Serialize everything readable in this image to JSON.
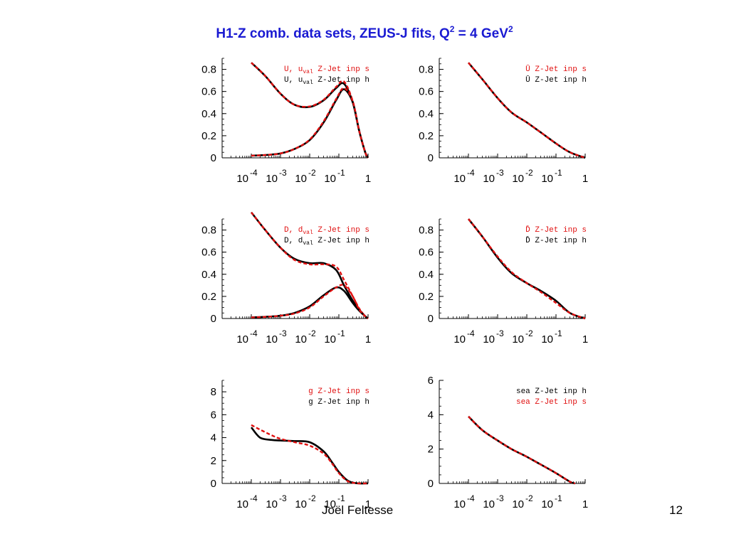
{
  "slide": {
    "title_main": "H1-Z comb. data sets, ZEUS-J fits, Q",
    "title_sup1": "2",
    "title_mid": " = 4 GeV",
    "title_sup2": "2",
    "footer_author": "Joël Feltesse",
    "footer_page": "12"
  },
  "colors": {
    "title": "#1a1ad2",
    "hera_series": "#e01010",
    "zeus_series": "#000000"
  },
  "chart_data": [
    {
      "type": "line",
      "x_scale": "log",
      "xlim": [
        1e-05,
        1
      ],
      "xticks": [
        {
          "base": "10",
          "exp": "-4"
        },
        {
          "base": "10",
          "exp": "-3"
        },
        {
          "base": "10",
          "exp": "-2"
        },
        {
          "base": "10",
          "exp": "-1"
        },
        {
          "base": "1",
          "exp": ""
        }
      ],
      "ylim": [
        0,
        0.9
      ],
      "yticks": [
        "0",
        "0.2",
        "0.4",
        "0.6",
        "0.8"
      ],
      "legend": [
        {
          "main": "U, u",
          "sub": "val",
          "suffix": "  Z-Jet inp s",
          "color": "#e01010"
        },
        {
          "main": "U, u",
          "sub": "val",
          "suffix": "  Z-Jet inp h",
          "color": "#000000"
        }
      ],
      "series": [
        {
          "style": "solid",
          "color": "#000000",
          "x": [
            0.0001,
            0.0003,
            0.001,
            0.003,
            0.01,
            0.03,
            0.08,
            0.15,
            0.3,
            0.5,
            0.8,
            1.0
          ],
          "y": [
            0.86,
            0.74,
            0.58,
            0.48,
            0.46,
            0.52,
            0.63,
            0.67,
            0.5,
            0.24,
            0.05,
            0.0
          ]
        },
        {
          "style": "dashed",
          "color": "#e01010",
          "x": [
            0.0001,
            0.0003,
            0.001,
            0.003,
            0.01,
            0.03,
            0.08,
            0.15,
            0.3,
            0.5,
            0.8,
            1.0
          ],
          "y": [
            0.86,
            0.74,
            0.58,
            0.48,
            0.465,
            0.525,
            0.64,
            0.69,
            0.51,
            0.24,
            0.05,
            0.0
          ]
        },
        {
          "style": "solid",
          "color": "#000000",
          "x": [
            0.0001,
            0.0003,
            0.001,
            0.003,
            0.01,
            0.03,
            0.08,
            0.15,
            0.3,
            0.5,
            0.8,
            1.0
          ],
          "y": [
            0.02,
            0.025,
            0.04,
            0.08,
            0.16,
            0.32,
            0.52,
            0.62,
            0.5,
            0.24,
            0.05,
            0.0
          ]
        },
        {
          "style": "dashed",
          "color": "#e01010",
          "x": [
            0.0001,
            0.0003,
            0.001,
            0.003,
            0.01,
            0.03,
            0.08,
            0.15,
            0.3,
            0.5,
            0.8,
            1.0
          ],
          "y": [
            0.02,
            0.025,
            0.04,
            0.08,
            0.165,
            0.33,
            0.53,
            0.63,
            0.51,
            0.24,
            0.05,
            0.0
          ]
        }
      ]
    },
    {
      "type": "line",
      "x_scale": "log",
      "xlim": [
        1e-05,
        1
      ],
      "xticks": [
        {
          "base": "10",
          "exp": "-4"
        },
        {
          "base": "10",
          "exp": "-3"
        },
        {
          "base": "10",
          "exp": "-2"
        },
        {
          "base": "10",
          "exp": "-1"
        },
        {
          "base": "1",
          "exp": ""
        }
      ],
      "ylim": [
        0,
        0.9
      ],
      "yticks": [
        "0",
        "0.2",
        "0.4",
        "0.6",
        "0.8"
      ],
      "legend": [
        {
          "main": "Ū",
          "sub": "",
          "suffix": "  Z-Jet inp s",
          "color": "#e01010"
        },
        {
          "main": "Ū",
          "sub": "",
          "suffix": "  Z-Jet inp h",
          "color": "#000000"
        }
      ],
      "series": [
        {
          "style": "solid",
          "color": "#000000",
          "x": [
            0.0001,
            0.0003,
            0.001,
            0.003,
            0.01,
            0.03,
            0.1,
            0.3,
            1.0
          ],
          "y": [
            0.86,
            0.71,
            0.54,
            0.41,
            0.32,
            0.23,
            0.13,
            0.05,
            0.0
          ]
        },
        {
          "style": "dashed",
          "color": "#e01010",
          "x": [
            0.0001,
            0.0003,
            0.001,
            0.003,
            0.01,
            0.03,
            0.1,
            0.3,
            1.0
          ],
          "y": [
            0.86,
            0.71,
            0.54,
            0.41,
            0.32,
            0.23,
            0.13,
            0.05,
            0.0
          ]
        }
      ]
    },
    {
      "type": "line",
      "x_scale": "log",
      "xlim": [
        1e-05,
        1
      ],
      "xticks": [
        {
          "base": "10",
          "exp": "-4"
        },
        {
          "base": "10",
          "exp": "-3"
        },
        {
          "base": "10",
          "exp": "-2"
        },
        {
          "base": "10",
          "exp": "-1"
        },
        {
          "base": "1",
          "exp": ""
        }
      ],
      "ylim": [
        0,
        0.9
      ],
      "yticks": [
        "0",
        "0.2",
        "0.4",
        "0.6",
        "0.8"
      ],
      "legend": [
        {
          "main": "D, d",
          "sub": "val",
          "suffix": "  Z-Jet inp s",
          "color": "#e01010"
        },
        {
          "main": "D, d",
          "sub": "val",
          "suffix": "  Z-Jet inp h",
          "color": "#000000"
        }
      ],
      "series": [
        {
          "style": "solid",
          "color": "#000000",
          "x": [
            0.0001,
            0.0003,
            0.001,
            0.003,
            0.01,
            0.03,
            0.08,
            0.15,
            0.3,
            0.5,
            0.8,
            1.0
          ],
          "y": [
            0.96,
            0.8,
            0.64,
            0.54,
            0.5,
            0.5,
            0.44,
            0.3,
            0.16,
            0.08,
            0.02,
            0.0
          ]
        },
        {
          "style": "dashed",
          "color": "#e01010",
          "x": [
            0.0001,
            0.0003,
            0.001,
            0.003,
            0.01,
            0.03,
            0.08,
            0.15,
            0.3,
            0.5,
            0.8,
            1.0
          ],
          "y": [
            0.96,
            0.8,
            0.64,
            0.53,
            0.49,
            0.49,
            0.47,
            0.35,
            0.2,
            0.09,
            0.02,
            0.0
          ]
        },
        {
          "style": "solid",
          "color": "#000000",
          "x": [
            0.0001,
            0.0003,
            0.001,
            0.003,
            0.01,
            0.03,
            0.08,
            0.15,
            0.3,
            0.5,
            0.8,
            1.0
          ],
          "y": [
            0.01,
            0.015,
            0.025,
            0.05,
            0.11,
            0.21,
            0.28,
            0.25,
            0.14,
            0.07,
            0.02,
            0.0
          ]
        },
        {
          "style": "dashed",
          "color": "#e01010",
          "x": [
            0.0001,
            0.0003,
            0.001,
            0.003,
            0.01,
            0.03,
            0.08,
            0.15,
            0.3,
            0.5,
            0.8,
            1.0
          ],
          "y": [
            0.01,
            0.015,
            0.025,
            0.045,
            0.1,
            0.2,
            0.28,
            0.3,
            0.2,
            0.08,
            0.02,
            0.0
          ]
        }
      ]
    },
    {
      "type": "line",
      "x_scale": "log",
      "xlim": [
        1e-05,
        1
      ],
      "xticks": [
        {
          "base": "10",
          "exp": "-4"
        },
        {
          "base": "10",
          "exp": "-3"
        },
        {
          "base": "10",
          "exp": "-2"
        },
        {
          "base": "10",
          "exp": "-1"
        },
        {
          "base": "1",
          "exp": ""
        }
      ],
      "ylim": [
        0,
        0.9
      ],
      "yticks": [
        "0",
        "0.2",
        "0.4",
        "0.6",
        "0.8"
      ],
      "legend": [
        {
          "main": "D̄",
          "sub": "",
          "suffix": "  Z-Jet inp s",
          "color": "#e01010"
        },
        {
          "main": "D̄",
          "sub": "",
          "suffix": "  Z-Jet inp h",
          "color": "#000000"
        }
      ],
      "series": [
        {
          "style": "solid",
          "color": "#000000",
          "x": [
            0.0001,
            0.0003,
            0.001,
            0.003,
            0.01,
            0.03,
            0.1,
            0.3,
            1.0
          ],
          "y": [
            0.9,
            0.74,
            0.55,
            0.41,
            0.32,
            0.25,
            0.16,
            0.05,
            0.0
          ]
        },
        {
          "style": "dashed",
          "color": "#e01010",
          "x": [
            0.0001,
            0.0003,
            0.001,
            0.003,
            0.01,
            0.03,
            0.1,
            0.3,
            1.0
          ],
          "y": [
            0.9,
            0.74,
            0.56,
            0.42,
            0.32,
            0.24,
            0.14,
            0.05,
            0.0
          ]
        }
      ]
    },
    {
      "type": "line",
      "x_scale": "log",
      "xlim": [
        1e-05,
        1
      ],
      "xticks": [
        {
          "base": "10",
          "exp": "-4"
        },
        {
          "base": "10",
          "exp": "-3"
        },
        {
          "base": "10",
          "exp": "-2"
        },
        {
          "base": "10",
          "exp": "-1"
        },
        {
          "base": "1",
          "exp": ""
        }
      ],
      "ylim": [
        0,
        9
      ],
      "yticks": [
        "0",
        "2",
        "4",
        "6",
        "8"
      ],
      "legend": [
        {
          "main": "g",
          "sub": "",
          "suffix": "  Z-Jet inp s",
          "color": "#e01010"
        },
        {
          "main": "g",
          "sub": "",
          "suffix": "  Z-Jet inp h",
          "color": "#000000"
        }
      ],
      "series": [
        {
          "style": "solid",
          "color": "#000000",
          "x": [
            0.0001,
            0.0002,
            0.0005,
            0.001,
            0.003,
            0.01,
            0.03,
            0.06,
            0.1,
            0.2,
            0.4,
            1.0
          ],
          "y": [
            4.9,
            4.0,
            3.8,
            3.75,
            3.7,
            3.6,
            2.8,
            1.8,
            1.0,
            0.25,
            0.02,
            0.0
          ]
        },
        {
          "style": "dashed",
          "color": "#e01010",
          "x": [
            0.0001,
            0.0002,
            0.0005,
            0.001,
            0.003,
            0.01,
            0.03,
            0.06,
            0.1,
            0.2,
            0.4,
            1.0
          ],
          "y": [
            5.1,
            4.7,
            4.2,
            3.9,
            3.6,
            3.3,
            2.6,
            1.7,
            0.9,
            0.2,
            0.02,
            0.0
          ]
        }
      ]
    },
    {
      "type": "line",
      "x_scale": "log",
      "xlim": [
        1e-05,
        1
      ],
      "xticks": [
        {
          "base": "10",
          "exp": "-4"
        },
        {
          "base": "10",
          "exp": "-3"
        },
        {
          "base": "10",
          "exp": "-2"
        },
        {
          "base": "10",
          "exp": "-1"
        },
        {
          "base": "1",
          "exp": ""
        }
      ],
      "ylim": [
        0,
        6
      ],
      "yticks": [
        "0",
        "2",
        "4",
        "6"
      ],
      "legend": [
        {
          "main": "sea",
          "sub": "",
          "suffix": "  Z-Jet inp h",
          "color": "#000000"
        },
        {
          "main": "sea",
          "sub": "",
          "suffix": "  Z-Jet inp s",
          "color": "#e01010"
        }
      ],
      "series": [
        {
          "style": "solid",
          "color": "#000000",
          "x": [
            0.0001,
            0.0003,
            0.001,
            0.003,
            0.01,
            0.03,
            0.1,
            0.3,
            0.45
          ],
          "y": [
            3.9,
            3.1,
            2.5,
            2.0,
            1.55,
            1.1,
            0.6,
            0.1,
            0.0
          ]
        },
        {
          "style": "dashed",
          "color": "#e01010",
          "x": [
            0.0001,
            0.0003,
            0.001,
            0.003,
            0.01,
            0.03,
            0.1,
            0.3,
            0.45
          ],
          "y": [
            3.9,
            3.1,
            2.5,
            2.0,
            1.55,
            1.1,
            0.6,
            0.1,
            0.0
          ]
        }
      ]
    }
  ]
}
